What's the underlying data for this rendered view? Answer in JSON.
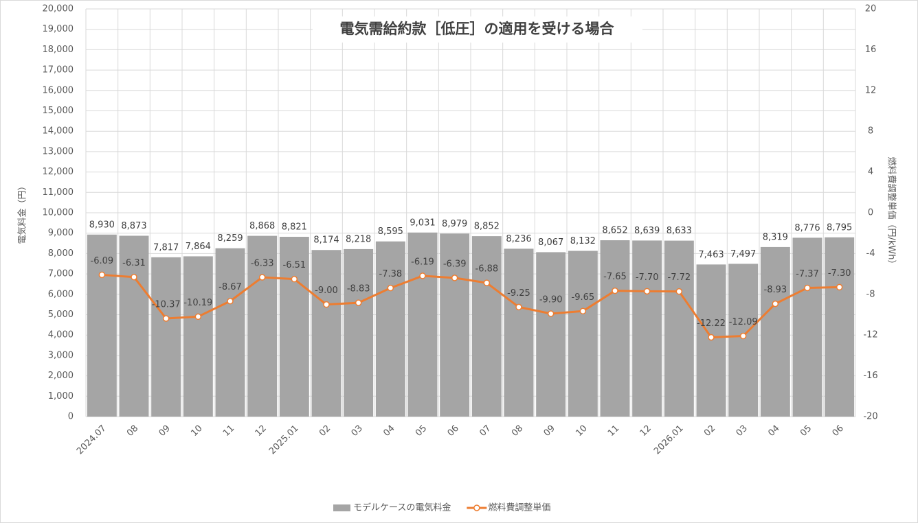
{
  "chart_data": {
    "type": "bar",
    "title": "電気需給約款［低圧］の適用を受ける場合",
    "y_label": "電気料金（円）",
    "y2_label": "燃料費調整単価（円/kWh）",
    "categories": [
      "2024.07",
      "08",
      "09",
      "10",
      "11",
      "12",
      "2025.01",
      "02",
      "03",
      "04",
      "05",
      "06",
      "07",
      "08",
      "09",
      "10",
      "11",
      "12",
      "2026.01",
      "02",
      "03",
      "04",
      "05",
      "06"
    ],
    "series": [
      {
        "name": "モデルケースの電気料金",
        "type": "bar",
        "color": "#a5a5a5",
        "values": [
          8930,
          8873,
          7817,
          7864,
          8259,
          8868,
          8821,
          8174,
          8218,
          8595,
          9031,
          8979,
          8852,
          8236,
          8067,
          8132,
          8652,
          8639,
          8633,
          7463,
          7497,
          8319,
          8776,
          8795
        ],
        "value_labels": [
          "8,930",
          "8,873",
          "7,817",
          "7,864",
          "8,259",
          "8,868",
          "8,821",
          "8,174",
          "8,218",
          "8,595",
          "9,031",
          "8,979",
          "8,852",
          "8,236",
          "8,067",
          "8,132",
          "8,652",
          "8,639",
          "8,633",
          "7,463",
          "7,497",
          "8,319",
          "8,776",
          "8,795"
        ]
      },
      {
        "name": "燃料費調整単価",
        "type": "line",
        "axis": "y2",
        "color": "#ed7d31",
        "values": [
          -6.09,
          -6.31,
          -10.37,
          -10.19,
          -8.67,
          -6.33,
          -6.51,
          -9.0,
          -8.83,
          -7.38,
          -6.19,
          -6.39,
          -6.88,
          -9.25,
          -9.9,
          -9.65,
          -7.65,
          -7.7,
          -7.72,
          -12.22,
          -12.09,
          -8.93,
          -7.37,
          -7.3
        ],
        "value_labels": [
          "-6.09",
          "-6.31",
          "-10.37",
          "-10.19",
          "-8.67",
          "-6.33",
          "-6.51",
          "-9.00",
          "-8.83",
          "-7.38",
          "-6.19",
          "-6.39",
          "-6.88",
          "-9.25",
          "-9.90",
          "-9.65",
          "-7.65",
          "-7.70",
          "-7.72",
          "-12.22",
          "-12.09",
          "-8.93",
          "-7.37",
          "-7.30"
        ]
      }
    ],
    "ylim": [
      0,
      20000
    ],
    "yticks": [
      0,
      {
        "value": 1000,
        "label": "1,000"
      },
      {
        "value": 2000,
        "label": "2,000"
      },
      {
        "value": 3000,
        "label": "3,000"
      },
      {
        "value": 4000,
        "label": "4,000"
      },
      {
        "value": 5000,
        "label": "5,000"
      },
      {
        "value": 6000,
        "label": "6,000"
      },
      {
        "value": 7000,
        "label": "7,000"
      },
      {
        "value": 8000,
        "label": "8,000"
      },
      {
        "value": 9000,
        "label": "9,000"
      },
      {
        "value": 10000,
        "label": "10,000"
      },
      {
        "value": 11000,
        "label": "11,000"
      },
      {
        "value": 12000,
        "label": "12,000"
      },
      {
        "value": 13000,
        "label": "13,000"
      },
      {
        "value": 14000,
        "label": "14,000"
      },
      {
        "value": 15000,
        "label": "15,000"
      },
      {
        "value": 16000,
        "label": "16,000"
      },
      {
        "value": 17000,
        "label": "17,000"
      },
      {
        "value": 18000,
        "label": "18,000"
      },
      {
        "value": 19000,
        "label": "19,000"
      },
      {
        "value": 20000,
        "label": "20,000"
      }
    ],
    "y2lim": [
      -20,
      20
    ],
    "y2ticks": [
      -20,
      -16,
      -12,
      -8,
      -4,
      0,
      4,
      8,
      12,
      16,
      20
    ],
    "grid": true,
    "legend": "bottom"
  }
}
